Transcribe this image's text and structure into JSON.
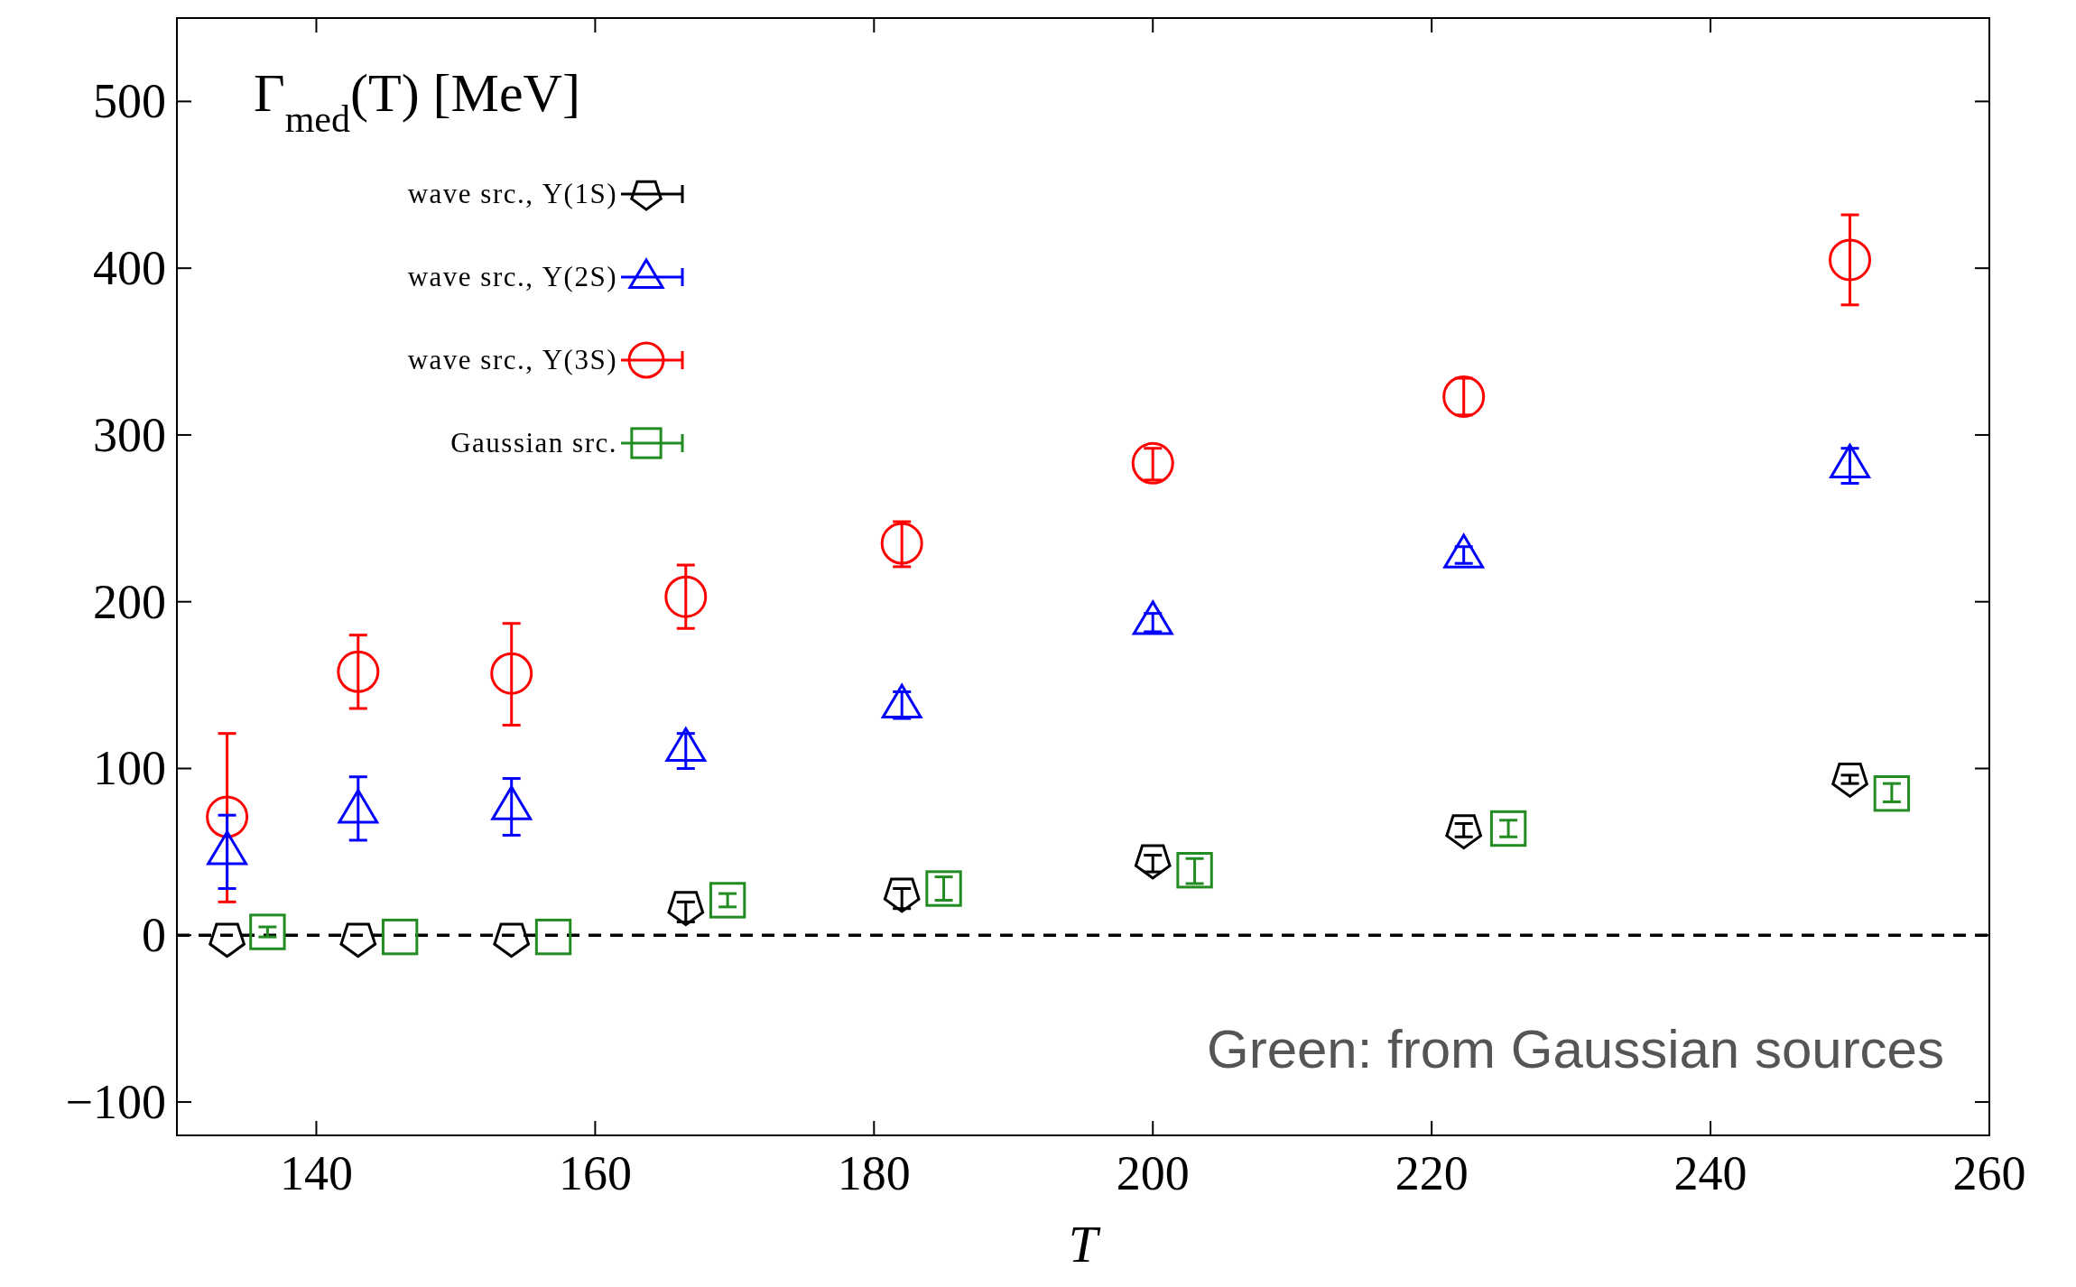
{
  "chart_data": {
    "type": "scatter",
    "title": "Γ$_{med}$(T) [MeV]",
    "xlabel": "T",
    "xlim": [
      130,
      260
    ],
    "ylim": [
      -120,
      550
    ],
    "xticks": [
      140,
      160,
      180,
      200,
      220,
      240,
      260
    ],
    "yticks": [
      -100,
      0,
      100,
      200,
      300,
      400,
      500
    ],
    "legend": "top left",
    "series": [
      {
        "name": "wave src., Υ(1S)",
        "color": "#000000",
        "x": [
          133.6,
          143,
          154,
          166.5,
          182,
          200,
          222.3,
          250
        ],
        "values": [
          -2,
          -2,
          -2,
          17,
          25,
          45,
          63,
          94
        ],
        "errors": [
          null,
          null,
          null,
          [
            8,
            20
          ],
          [
            16,
            28
          ],
          [
            38,
            48
          ],
          [
            59,
            67
          ],
          [
            91,
            96
          ]
        ]
      },
      {
        "name": "wave src., Υ(2S)",
        "color": "#0000ff",
        "marker": "triangle",
        "x": [
          133.6,
          143,
          154,
          166.5,
          182,
          200,
          222.3,
          250
        ],
        "values": [
          50,
          75,
          77,
          112,
          138,
          188,
          228,
          282
        ],
        "errors": [
          [
            28,
            72
          ],
          [
            57,
            95
          ],
          [
            60,
            94
          ],
          [
            100,
            121
          ],
          [
            130,
            146
          ],
          [
            182,
            193
          ],
          [
            223,
            233
          ],
          [
            271,
            292
          ]
        ]
      },
      {
        "name": "wave src., Υ(3S)",
        "color": "#ff0000",
        "marker": "circle",
        "x": [
          133.6,
          143,
          154,
          166.5,
          182,
          200,
          222.3,
          250
        ],
        "values": [
          71,
          158,
          157,
          203,
          235,
          283,
          323,
          405
        ],
        "errors": [
          [
            20,
            121
          ],
          [
            136,
            180
          ],
          [
            126,
            187
          ],
          [
            184,
            222
          ],
          [
            221,
            248
          ],
          [
            273,
            292
          ],
          [
            312,
            334
          ],
          [
            378,
            432
          ]
        ]
      },
      {
        "name": "Gaussian src.",
        "color": "#228b22",
        "marker": "square",
        "x": [
          136.5,
          146,
          157,
          169.5,
          185,
          203,
          225.5,
          253
        ],
        "values": [
          2,
          -1,
          -1,
          21,
          28,
          39,
          64,
          85
        ],
        "errors": [
          [
            -1,
            5
          ],
          null,
          null,
          [
            17,
            25
          ],
          [
            21,
            35
          ],
          [
            31,
            46
          ],
          [
            59,
            69
          ],
          [
            80,
            91
          ]
        ]
      }
    ],
    "ref_lines": [
      {
        "axis": "y",
        "value": 0,
        "color": "#000000",
        "line_style": "dashed"
      }
    ],
    "annotations": [
      "Green: from Gaussian sources"
    ]
  }
}
